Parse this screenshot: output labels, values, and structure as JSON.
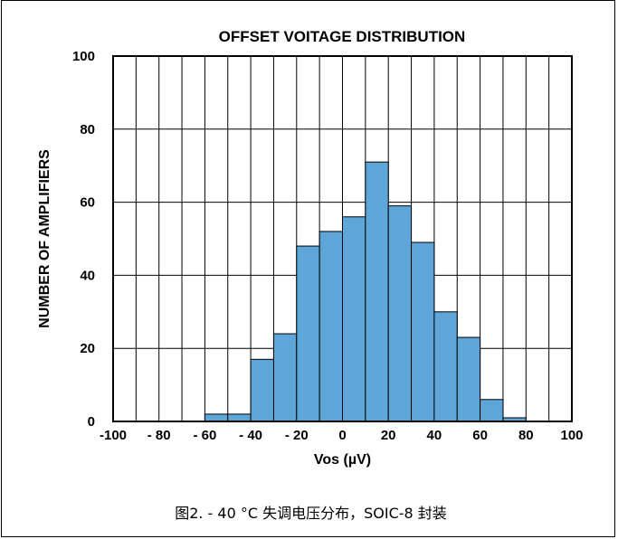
{
  "chart_data": {
    "type": "bar",
    "title": "OFFSET VOITAGE DISTRIBUTION",
    "xlabel": "Vos (µV)",
    "ylabel": "NUMBER OF AMPLIFIERS",
    "xlim": [
      -100,
      100
    ],
    "ylim": [
      0,
      100
    ],
    "bin_width": 10,
    "x_ticks": [
      -100,
      -80,
      -60,
      -40,
      -20,
      0,
      20,
      40,
      60,
      80,
      100
    ],
    "x_tick_labels": [
      "-100",
      "- 80",
      "- 60",
      "- 40",
      "- 20",
      "0",
      "20",
      "40",
      "60",
      "80",
      "100"
    ],
    "y_ticks": [
      0,
      20,
      40,
      60,
      80,
      100
    ],
    "y_tick_labels": [
      "0",
      "20",
      "40",
      "60",
      "80",
      "100"
    ],
    "grid": true,
    "bins": [
      {
        "x0": -100,
        "x1": -90,
        "value": 0
      },
      {
        "x0": -90,
        "x1": -80,
        "value": 0
      },
      {
        "x0": -80,
        "x1": -70,
        "value": 0
      },
      {
        "x0": -70,
        "x1": -60,
        "value": 0
      },
      {
        "x0": -60,
        "x1": -50,
        "value": 2
      },
      {
        "x0": -50,
        "x1": -40,
        "value": 2
      },
      {
        "x0": -40,
        "x1": -30,
        "value": 17
      },
      {
        "x0": -30,
        "x1": -20,
        "value": 24
      },
      {
        "x0": -20,
        "x1": -10,
        "value": 48
      },
      {
        "x0": -10,
        "x1": 0,
        "value": 52
      },
      {
        "x0": 0,
        "x1": 10,
        "value": 56
      },
      {
        "x0": 10,
        "x1": 20,
        "value": 71
      },
      {
        "x0": 20,
        "x1": 30,
        "value": 59
      },
      {
        "x0": 30,
        "x1": 40,
        "value": 49
      },
      {
        "x0": 40,
        "x1": 50,
        "value": 30
      },
      {
        "x0": 50,
        "x1": 60,
        "value": 23
      },
      {
        "x0": 60,
        "x1": 70,
        "value": 6
      },
      {
        "x0": 70,
        "x1": 80,
        "value": 1
      },
      {
        "x0": 80,
        "x1": 90,
        "value": 0
      },
      {
        "x0": 90,
        "x1": 100,
        "value": 0
      }
    ]
  },
  "caption": "图2. - 40 °C 失调电压分布，SOIC-8 封装",
  "colors": {
    "bar_fill": "#5fa6d8",
    "bar_stroke": "#000000",
    "grid": "#000000"
  }
}
